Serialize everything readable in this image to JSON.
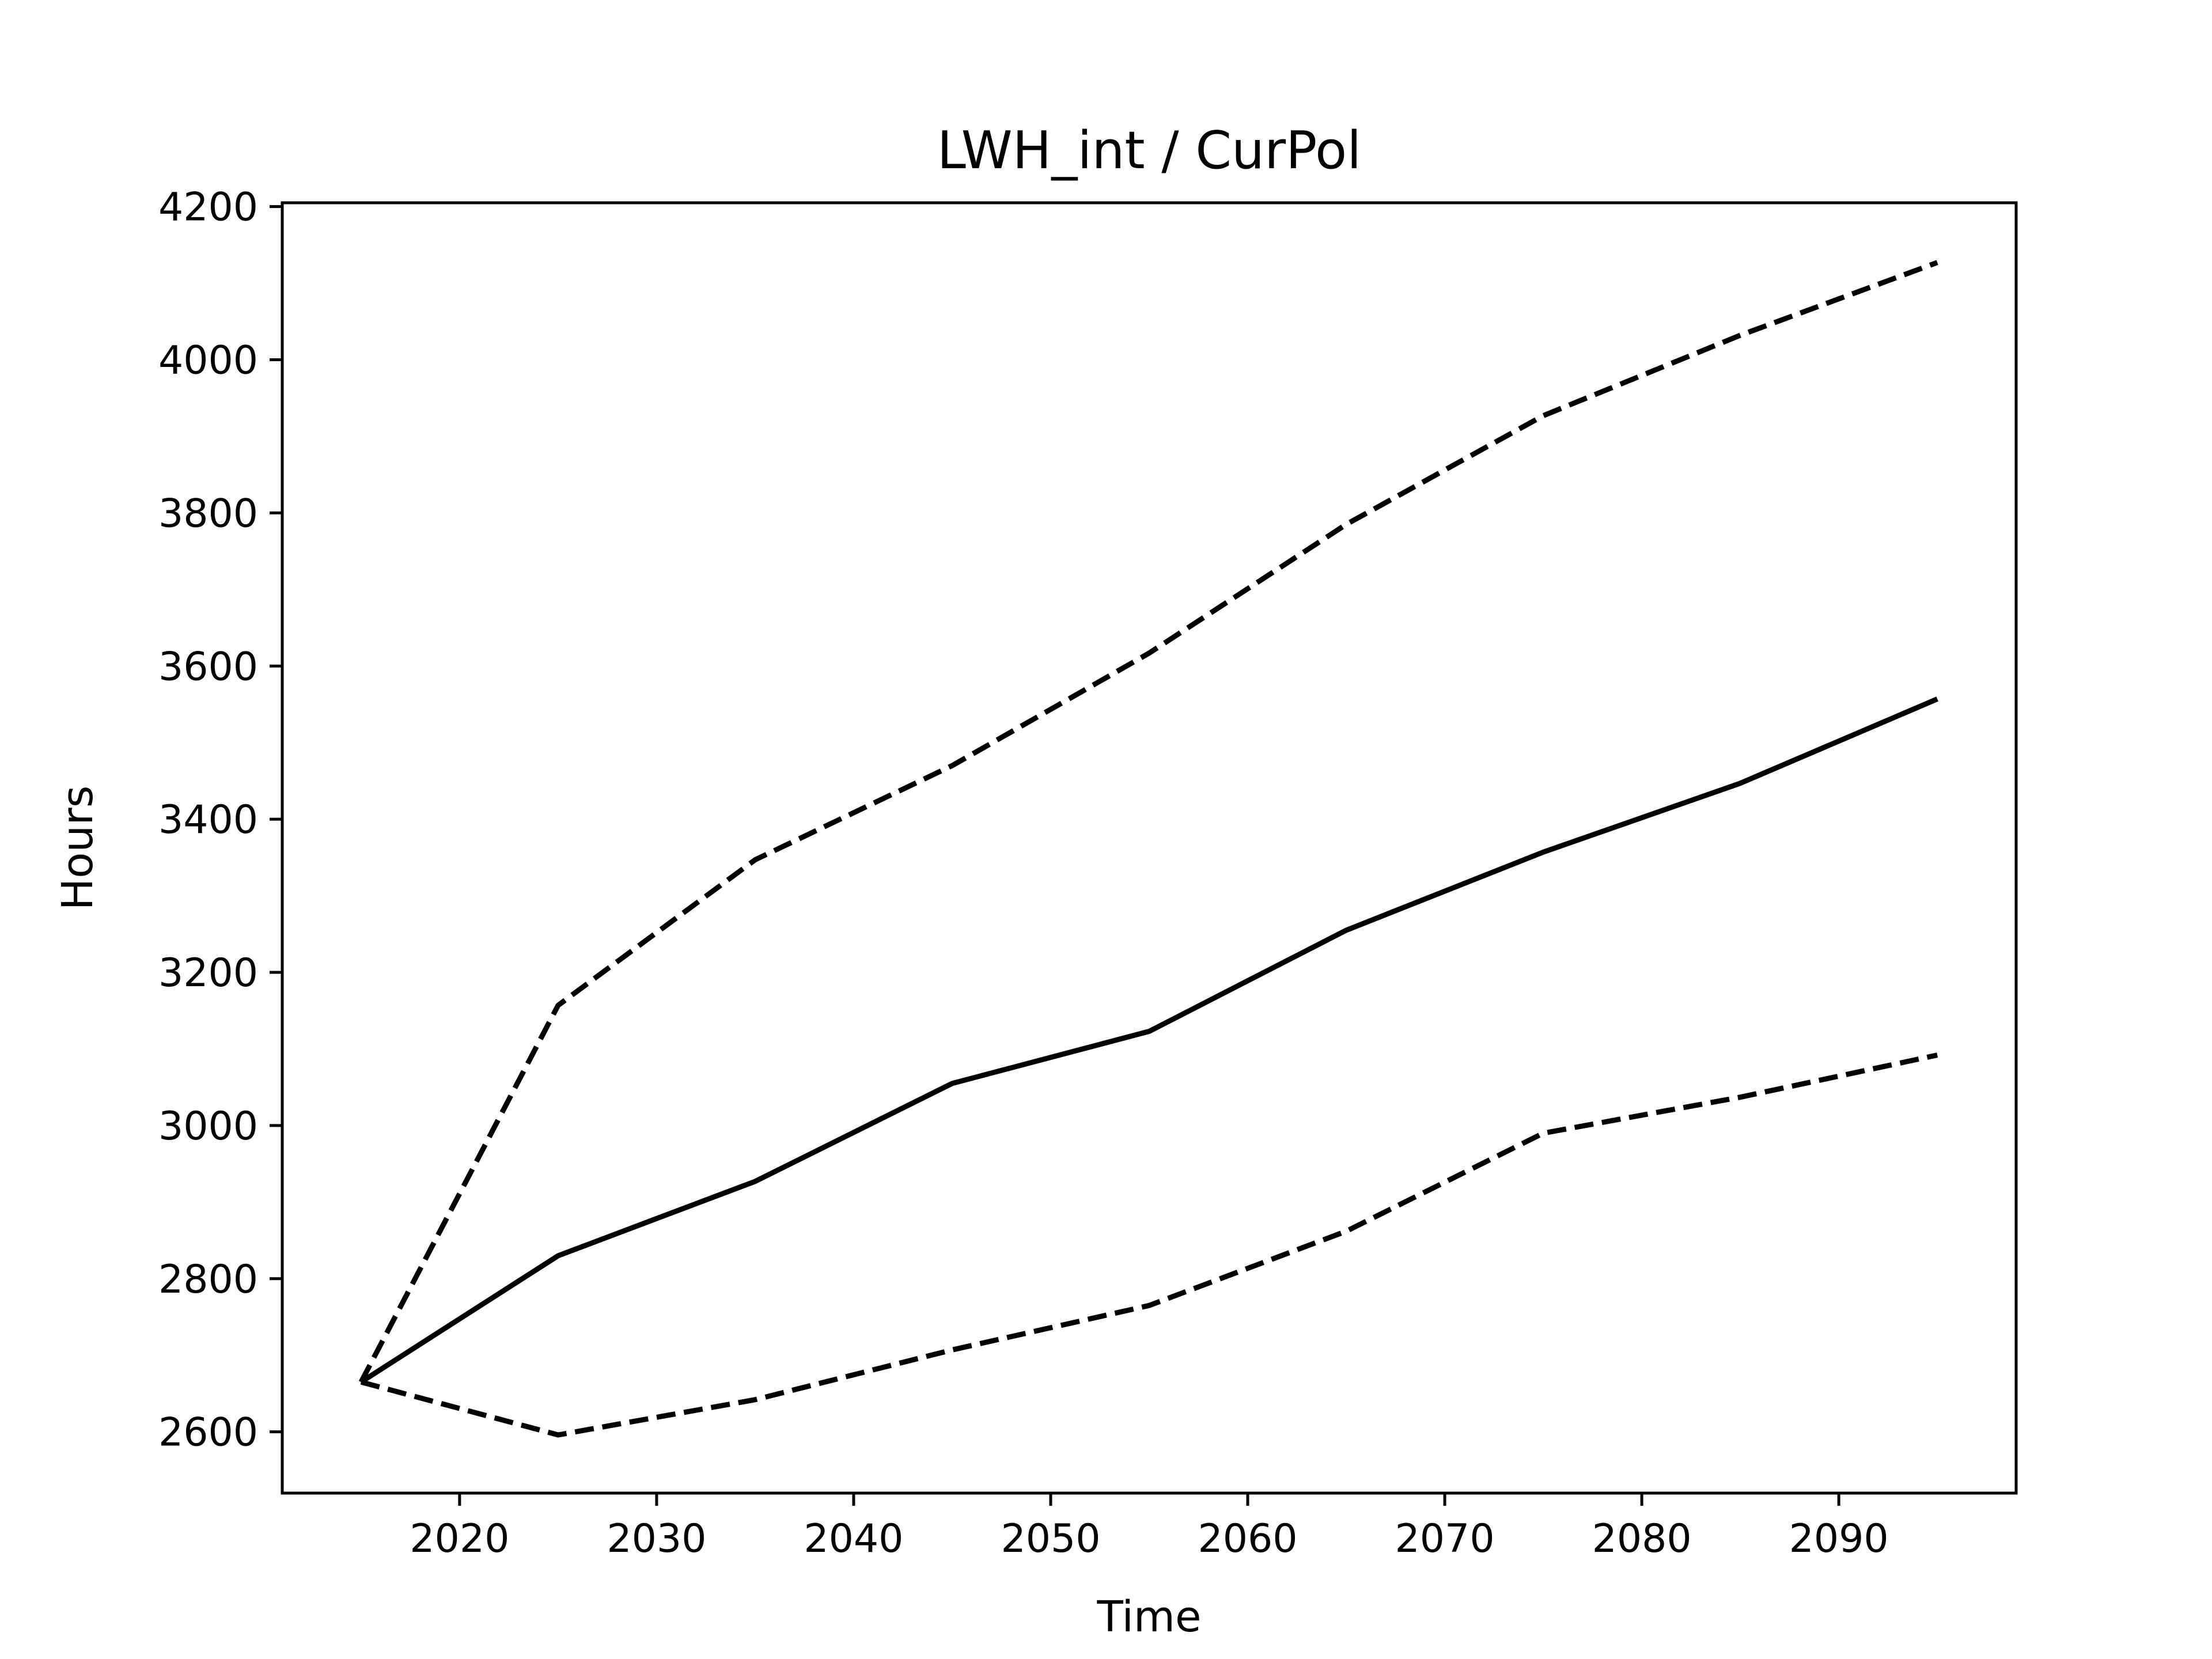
{
  "chart_data": {
    "type": "line",
    "title": "LWH_int / CurPol",
    "xlabel": "Time",
    "ylabel": "Hours",
    "xlim": [
      2011,
      2099
    ],
    "ylim": [
      2520,
      4205
    ],
    "x_ticks": [
      2020,
      2030,
      2040,
      2050,
      2060,
      2070,
      2080,
      2090
    ],
    "y_ticks": [
      2600,
      2800,
      3000,
      3200,
      3400,
      3600,
      3800,
      4000,
      4200
    ],
    "grid": false,
    "x": [
      2015,
      2025,
      2035,
      2045,
      2055,
      2065,
      2075,
      2085,
      2095
    ],
    "series": [
      {
        "style": "solid",
        "color": "#000000",
        "values": [
          2665,
          2830,
          2927,
          3055,
          3123,
          3255,
          3357,
          3447,
          3557
        ]
      },
      {
        "style": "dashed",
        "color": "#000000",
        "values": [
          2665,
          3157,
          3347,
          3470,
          3617,
          3785,
          3927,
          4032,
          4127
        ]
      },
      {
        "style": "dashed",
        "color": "#000000",
        "values": [
          2665,
          2596,
          2642,
          2707,
          2765,
          2862,
          2990,
          3037,
          3092
        ]
      }
    ]
  }
}
